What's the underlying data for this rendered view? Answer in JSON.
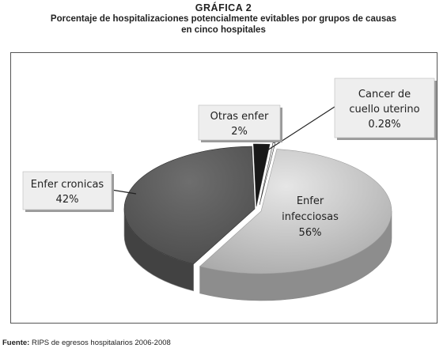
{
  "figure": {
    "number_label": "GRÁFICA 2",
    "title_line1": "Porcentaje de hospitalizaciones potencialmente evitables por grupos de causas",
    "title_line2": "en cinco hospitales"
  },
  "chart_data": {
    "type": "pie",
    "title": "Porcentaje de hospitalizaciones potencialmente evitables por grupos de causas en cinco hospitales",
    "slices": [
      {
        "name": "Enfer infecciosas",
        "label_lines": [
          "Enfer",
          "infecciosas"
        ],
        "percent_label": "56%",
        "value": 56,
        "color": "#c4c4c4"
      },
      {
        "name": "Enfer cronicas",
        "label_lines": [
          "Enfer cronicas"
        ],
        "percent_label": "42%",
        "value": 42,
        "color": "#5c5c5c"
      },
      {
        "name": "Otras enfer",
        "label_lines": [
          "Otras enfer"
        ],
        "percent_label": "2%",
        "value": 2,
        "color": "#181818"
      },
      {
        "name": "Cancer de cuello uterino",
        "label_lines": [
          "Cancer de",
          "cuello uterino"
        ],
        "percent_label": "0.28%",
        "value": 0.28,
        "color": "#ededed"
      }
    ],
    "style": "3d-exploded-pie"
  },
  "footer": {
    "source_label": "Fuente:",
    "source_text": " RIPS de egresos hospitalarios 2006-2008"
  }
}
